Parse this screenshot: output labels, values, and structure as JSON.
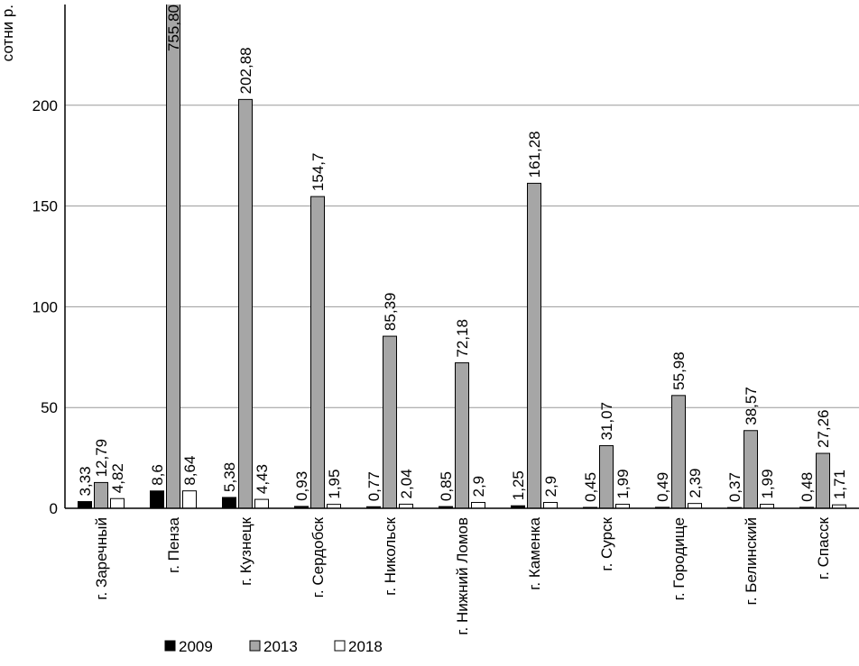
{
  "chart_data": {
    "type": "bar",
    "y_label": "сотни р.",
    "categories": [
      "г. Заречный",
      "г. Пенза",
      "г. Кузнецк",
      "г. Сердобск",
      "г. Никольск",
      "г. Нижний Ломов",
      "г. Каменка",
      "г. Сурск",
      "г. Городище",
      "г. Белинский",
      "г. Спасск"
    ],
    "series": [
      {
        "name": "2009",
        "color": "#000000",
        "values": [
          3.33,
          8.6,
          5.38,
          0.93,
          0.77,
          0.85,
          1.25,
          0.45,
          0.49,
          0.37,
          0.48
        ],
        "value_labels": [
          "3,33",
          "8,6",
          "5,38",
          "0,93",
          "0,77",
          "0,85",
          "1,25",
          "0,45",
          "0,49",
          "0,37",
          "0,48"
        ]
      },
      {
        "name": "2013",
        "color": "#a6a6a6",
        "values": [
          12.79,
          755.8,
          202.88,
          154.7,
          85.39,
          72.18,
          161.28,
          31.07,
          55.98,
          38.57,
          27.26
        ],
        "value_labels": [
          "12,79",
          "755,80",
          "202,88",
          "154,7",
          "85,39",
          "72,18",
          "161,28",
          "31,07",
          "55,98",
          "38,57",
          "27,26"
        ]
      },
      {
        "name": "2018",
        "color": "#ffffff",
        "values": [
          4.82,
          8.64,
          4.43,
          1.95,
          2.04,
          2.9,
          2.9,
          1.99,
          2.39,
          1.99,
          1.71
        ],
        "value_labels": [
          "4,82",
          "8,64",
          "4,43",
          "1,95",
          "2,04",
          "2,9",
          "2,9",
          "1,99",
          "2,39",
          "1,99",
          "1,71"
        ]
      }
    ],
    "ylim": [
      0,
      250
    ],
    "yticks": [
      0,
      50,
      100,
      150,
      200
    ],
    "grid": true,
    "legend": "bottom"
  }
}
